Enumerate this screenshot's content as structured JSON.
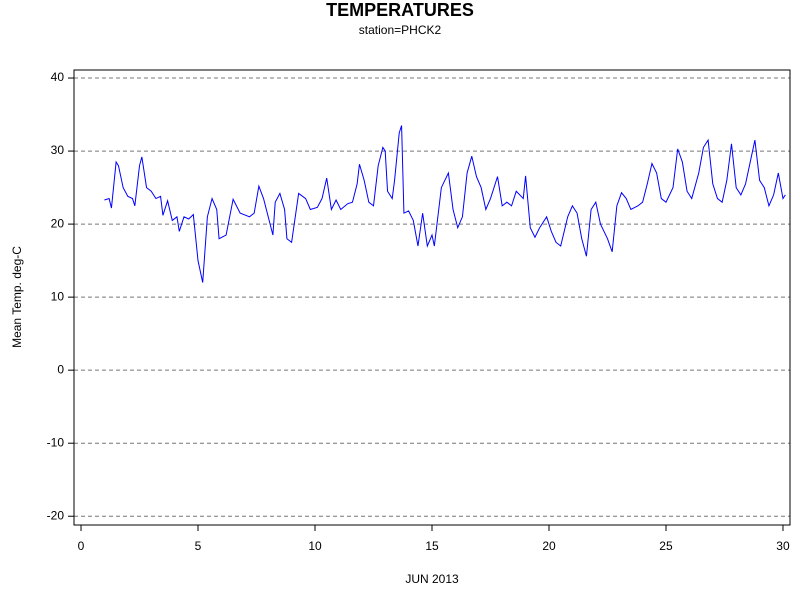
{
  "chart_data": {
    "type": "line",
    "title": "TEMPERATURES",
    "subtitle": "station=PHCK2",
    "x_label": "JUN 2013",
    "y_label": "Mean Temp. deg-C",
    "xlim": [
      -0.3,
      30.3
    ],
    "xticks": [
      0,
      5,
      10,
      15,
      20,
      25,
      30
    ],
    "ylim": [
      -21.2,
      41.1
    ],
    "yticks": [
      -20,
      -10,
      0,
      10,
      20,
      30,
      40
    ],
    "grid": true,
    "x": [
      1.0,
      1.2,
      1.3,
      1.5,
      1.6,
      1.8,
      2.0,
      2.2,
      2.3,
      2.5,
      2.6,
      2.8,
      3.0,
      3.2,
      3.4,
      3.5,
      3.7,
      3.9,
      4.1,
      4.2,
      4.4,
      4.6,
      4.8,
      5.0,
      5.2,
      5.4,
      5.6,
      5.8,
      5.9,
      6.2,
      6.5,
      6.8,
      7.2,
      7.4,
      7.6,
      7.8,
      8.0,
      8.2,
      8.3,
      8.5,
      8.7,
      8.8,
      9.0,
      9.3,
      9.6,
      9.8,
      10.1,
      10.3,
      10.5,
      10.7,
      10.9,
      11.1,
      11.4,
      11.6,
      11.8,
      11.9,
      12.1,
      12.3,
      12.5,
      12.7,
      12.9,
      13.0,
      13.1,
      13.3,
      13.4,
      13.6,
      13.7,
      13.8,
      14.0,
      14.2,
      14.4,
      14.6,
      14.8,
      15.0,
      15.1,
      15.4,
      15.7,
      15.9,
      16.1,
      16.3,
      16.5,
      16.7,
      16.9,
      17.1,
      17.3,
      17.5,
      17.8,
      18.0,
      18.2,
      18.4,
      18.6,
      18.9,
      19.0,
      19.2,
      19.4,
      19.6,
      19.9,
      20.1,
      20.3,
      20.5,
      20.8,
      21.0,
      21.2,
      21.4,
      21.6,
      21.8,
      22.0,
      22.2,
      22.5,
      22.7,
      22.9,
      23.1,
      23.3,
      23.5,
      23.8,
      24.0,
      24.2,
      24.4,
      24.6,
      24.8,
      25.0,
      25.3,
      25.5,
      25.7,
      25.9,
      26.1,
      26.4,
      26.6,
      26.8,
      27.0,
      27.2,
      27.4,
      27.6,
      27.8,
      28.0,
      28.2,
      28.4,
      28.6,
      28.8,
      29.0,
      29.2,
      29.4,
      29.6,
      29.8,
      30.0,
      30.1
    ],
    "series": [
      {
        "name": "Mean Temp",
        "color": "#0000ff",
        "values": [
          23.3,
          23.5,
          22.2,
          28.5,
          28,
          25,
          23.8,
          23.5,
          22.5,
          28,
          29.2,
          25,
          24.5,
          23.5,
          23.8,
          21.2,
          23.2,
          20.5,
          21,
          19,
          21,
          20.7,
          21.3,
          15,
          12,
          21,
          23.5,
          22,
          18,
          18.5,
          23.4,
          21.5,
          21,
          21.5,
          25.2,
          23.5,
          21,
          18.5,
          23,
          24.2,
          22,
          18,
          17.5,
          24.2,
          23.5,
          22,
          22.3,
          23.5,
          26.3,
          22,
          23.3,
          22,
          22.8,
          23,
          25.5,
          28.2,
          26,
          23,
          22.5,
          28,
          30.5,
          30,
          24.5,
          23.5,
          26,
          32.5,
          33.5,
          21.5,
          21.8,
          20.5,
          17,
          21.5,
          17,
          18.5,
          17,
          25,
          27,
          22,
          19.5,
          21,
          27,
          29.3,
          26.5,
          25,
          22,
          23.5,
          26.5,
          22.5,
          23,
          22.5,
          24.5,
          23.5,
          26.6,
          19.5,
          18.2,
          19.5,
          21,
          19,
          17.5,
          17,
          21,
          22.5,
          21.5,
          18,
          15.6,
          22,
          23,
          20,
          18,
          16.2,
          22.5,
          24.3,
          23.5,
          22,
          22.5,
          23,
          25.5,
          28.3,
          27,
          23.5,
          23,
          25,
          30.3,
          28.5,
          24.5,
          23.5,
          27,
          30.5,
          31.5,
          25.5,
          23.5,
          23,
          26,
          31,
          25,
          24,
          25.5,
          28.5,
          31.5,
          26,
          25,
          22.5,
          24,
          27,
          23.5,
          24
        ]
      }
    ]
  }
}
